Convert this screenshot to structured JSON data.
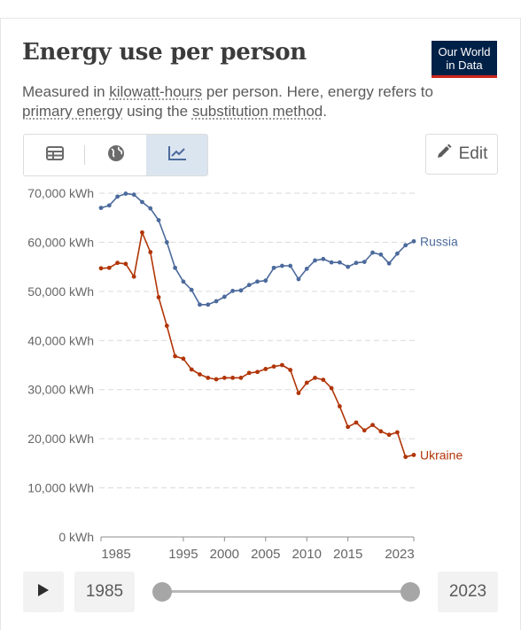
{
  "header": {
    "title": "Energy use per person",
    "subtitle_pre": "Measured in ",
    "subtitle_link1": "kilowatt-hours",
    "subtitle_mid": " per person. Here, energy refers to ",
    "subtitle_link2": "primary energy",
    "subtitle_mid2": " using the ",
    "subtitle_link3": "substitution method",
    "subtitle_post": "."
  },
  "logo": {
    "line1": "Our World",
    "line2": "in Data",
    "bg": "#002147",
    "accent": "#ce261e"
  },
  "tabs": [
    {
      "name": "table",
      "icon": "table-icon",
      "active": false
    },
    {
      "name": "map",
      "icon": "globe-icon",
      "active": false
    },
    {
      "name": "chart",
      "icon": "line-chart-icon",
      "active": true
    }
  ],
  "edit_label": "Edit",
  "controls": {
    "start_year": "1985",
    "end_year": "2023",
    "play_icon": "play-icon"
  },
  "chart_data": {
    "type": "line",
    "title": "Energy use per person",
    "yunit": "kWh",
    "ylim": [
      0,
      70000
    ],
    "yticks": [
      0,
      10000,
      20000,
      30000,
      40000,
      50000,
      60000,
      70000
    ],
    "ytick_labels": [
      "0 kWh",
      "10,000 kWh",
      "20,000 kWh",
      "30,000 kWh",
      "40,000 kWh",
      "50,000 kWh",
      "60,000 kWh",
      "70,000 kWh"
    ],
    "xlim": [
      1985,
      2023
    ],
    "xticks": [
      1985,
      1995,
      2000,
      2005,
      2010,
      2015,
      2023
    ],
    "grid": true,
    "series": [
      {
        "name": "Russia",
        "color": "#4c6a9c",
        "x": [
          1985,
          1986,
          1987,
          1988,
          1989,
          1990,
          1991,
          1992,
          1993,
          1994,
          1995,
          1996,
          1997,
          1998,
          1999,
          2000,
          2001,
          2002,
          2003,
          2004,
          2005,
          2006,
          2007,
          2008,
          2009,
          2010,
          2011,
          2012,
          2013,
          2014,
          2015,
          2016,
          2017,
          2018,
          2019,
          2020,
          2021,
          2022,
          2023
        ],
        "y": [
          67000,
          67500,
          69300,
          69900,
          69700,
          68200,
          66900,
          64500,
          60000,
          54800,
          52000,
          50300,
          47300,
          47300,
          48000,
          48900,
          50100,
          50200,
          51300,
          52000,
          52200,
          54800,
          55200,
          55200,
          52500,
          54600,
          56300,
          56600,
          55900,
          55900,
          55000,
          55800,
          56000,
          57900,
          57500,
          55700,
          57700,
          59400,
          60200
        ]
      },
      {
        "name": "Ukraine",
        "color": "#b13507",
        "x": [
          1985,
          1986,
          1987,
          1988,
          1989,
          1990,
          1991,
          1992,
          1993,
          1994,
          1995,
          1996,
          1997,
          1998,
          1999,
          2000,
          2001,
          2002,
          2003,
          2004,
          2005,
          2006,
          2007,
          2008,
          2009,
          2010,
          2011,
          2012,
          2013,
          2014,
          2015,
          2016,
          2017,
          2018,
          2019,
          2020,
          2021,
          2022,
          2023
        ],
        "y": [
          54700,
          54800,
          55800,
          55600,
          53000,
          62000,
          58000,
          48800,
          43000,
          36800,
          36300,
          34100,
          33100,
          32400,
          32100,
          32400,
          32400,
          32400,
          33400,
          33600,
          34200,
          34700,
          35000,
          34000,
          29300,
          31400,
          32400,
          32000,
          30300,
          26600,
          22400,
          23300,
          21700,
          22800,
          21500,
          20800,
          21300,
          16300,
          16700
        ]
      }
    ]
  }
}
